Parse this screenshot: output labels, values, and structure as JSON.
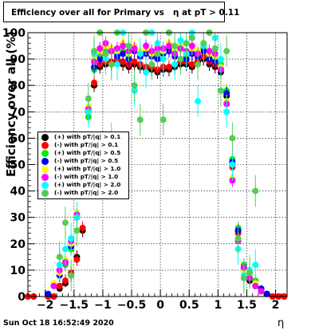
{
  "title": "Efficiency over all for Primary vs   η at pT > 0.11",
  "timestamp": "Sun Oct 18 16:52:49 2020",
  "chart_data": {
    "type": "scatter",
    "title": "Efficiency over all for Primary vs   η at pT > 0.11",
    "xlabel": "η",
    "ylabel": "Efficiency over all (%)",
    "xlim": [
      -2.3,
      2.2
    ],
    "ylim": [
      0,
      100
    ],
    "grid": true,
    "legend_position": "left-middle",
    "x_ticks": [
      "−2",
      "−1.5",
      "−1",
      "−0.5",
      "0",
      "0.5",
      "1",
      "1.5",
      "2"
    ],
    "x_tick_values": [
      -2,
      -1.5,
      -1,
      -0.5,
      0,
      0.5,
      1,
      1.5,
      2
    ],
    "y_ticks": [
      "0",
      "10",
      "20",
      "30",
      "40",
      "50",
      "60",
      "70",
      "80",
      "90",
      "100"
    ],
    "y_tick_values": [
      0,
      10,
      20,
      30,
      40,
      50,
      60,
      70,
      80,
      90,
      100
    ],
    "series": [
      {
        "name": "(+) with pT/|q| > 0.1",
        "color": "#000000",
        "x": [
          -2.3,
          -2.2,
          -1.95,
          -1.85,
          -1.75,
          -1.65,
          -1.55,
          -1.45,
          -1.35,
          -1.25,
          -1.15,
          -1.05,
          -0.95,
          -0.85,
          -0.75,
          -0.65,
          -0.55,
          -0.45,
          -0.35,
          -0.25,
          -0.15,
          -0.05,
          0.05,
          0.15,
          0.25,
          0.35,
          0.45,
          0.55,
          0.65,
          0.75,
          0.85,
          0.95,
          1.05,
          1.15,
          1.25,
          1.35,
          1.45,
          1.55,
          1.65,
          1.75,
          1.85,
          1.95,
          2.05,
          2.15
        ],
        "y": [
          0,
          0,
          0,
          0,
          3,
          5,
          8,
          15,
          25,
          55,
          80,
          87,
          88,
          88,
          89,
          88,
          87,
          88,
          87,
          86,
          86,
          85,
          86,
          86,
          87,
          88,
          88,
          87,
          89,
          90,
          88,
          87,
          85,
          76,
          50,
          25,
          10,
          6,
          4,
          2,
          1,
          0,
          0,
          0
        ]
      },
      {
        "name": "(-) with pT/|q| > 0.1",
        "color": "#ff0000",
        "x": [
          -2.3,
          -2.2,
          -1.95,
          -1.85,
          -1.75,
          -1.65,
          -1.55,
          -1.45,
          -1.35,
          -1.25,
          -1.15,
          -1.05,
          -0.95,
          -0.85,
          -0.75,
          -0.65,
          -0.55,
          -0.45,
          -0.35,
          -0.25,
          -0.15,
          -0.05,
          0.05,
          0.15,
          0.25,
          0.35,
          0.45,
          0.55,
          0.65,
          0.75,
          0.85,
          0.95,
          1.05,
          1.15,
          1.25,
          1.35,
          1.45,
          1.55,
          1.65,
          1.75,
          1.85,
          1.95,
          2.05,
          2.15
        ],
        "y": [
          0,
          0,
          0,
          0,
          4,
          6,
          9,
          14,
          26,
          56,
          81,
          88,
          89,
          89,
          90,
          89,
          88,
          89,
          88,
          87,
          87,
          86,
          87,
          87,
          88,
          89,
          89,
          88,
          90,
          91,
          89,
          88,
          86,
          77,
          49,
          24,
          11,
          7,
          4,
          2,
          1,
          0,
          0,
          0
        ]
      },
      {
        "name": "(+) with pT/|q| > 0.5",
        "color": "#00ee00",
        "x": [
          -1.95,
          -1.85,
          -1.75,
          -1.65,
          -1.55,
          -1.45,
          -1.35,
          -1.25,
          -1.15,
          -1.05,
          -0.95,
          -0.85,
          -0.75,
          -0.65,
          -0.55,
          -0.45,
          -0.35,
          -0.25,
          -0.15,
          -0.05,
          0.05,
          0.15,
          0.25,
          0.35,
          0.45,
          0.55,
          0.65,
          0.75,
          0.85,
          0.95,
          1.05,
          1.15,
          1.25,
          1.35,
          1.45,
          1.55,
          1.65,
          1.75,
          1.85
        ],
        "y": [
          1,
          5,
          8,
          12,
          18,
          30,
          48,
          68,
          86,
          91,
          93,
          94,
          92,
          93,
          91,
          94,
          92,
          93,
          92,
          91,
          93,
          94,
          92,
          95,
          91,
          93,
          92,
          94,
          91,
          90,
          88,
          78,
          52,
          26,
          12,
          9,
          6,
          3,
          1
        ]
      },
      {
        "name": "(-) with pT/|q| > 0.5",
        "color": "#0000ff",
        "x": [
          -1.95,
          -1.85,
          -1.75,
          -1.65,
          -1.55,
          -1.45,
          -1.35,
          -1.25,
          -1.15,
          -1.05,
          -0.95,
          -0.85,
          -0.75,
          -0.65,
          -0.55,
          -0.45,
          -0.35,
          -0.25,
          -0.15,
          -0.05,
          0.05,
          0.15,
          0.25,
          0.35,
          0.45,
          0.55,
          0.65,
          0.75,
          0.85,
          0.95,
          1.05,
          1.15,
          1.25,
          1.35,
          1.45,
          1.55,
          1.65,
          1.75,
          1.85
        ],
        "y": [
          1,
          4,
          8,
          13,
          19,
          30,
          47,
          70,
          87,
          90,
          92,
          93,
          91,
          92,
          90,
          93,
          91,
          92,
          91,
          90,
          92,
          93,
          91,
          94,
          90,
          92,
          91,
          93,
          90,
          89,
          87,
          77,
          51,
          25,
          11,
          8,
          5,
          3,
          1
        ]
      },
      {
        "name": "(+) with pT/|q| > 1.0",
        "color": "#ffff00",
        "x": [
          -1.85,
          -1.75,
          -1.65,
          -1.55,
          -1.45,
          -1.35,
          -1.25,
          -1.15,
          -1.05,
          -0.95,
          -0.85,
          -0.75,
          -0.65,
          -0.55,
          -0.45,
          -0.35,
          -0.25,
          -0.15,
          -0.05,
          0.05,
          0.15,
          0.25,
          0.35,
          0.45,
          0.55,
          0.65,
          0.75,
          0.85,
          0.95,
          1.05,
          1.15,
          1.25,
          1.35,
          1.45,
          1.55,
          1.65,
          1.75
        ],
        "y": [
          5,
          9,
          14,
          20,
          32,
          50,
          72,
          90,
          93,
          95,
          94,
          93,
          96,
          92,
          95,
          93,
          94,
          92,
          95,
          93,
          96,
          93,
          95,
          92,
          94,
          93,
          96,
          92,
          91,
          87,
          74,
          45,
          22,
          10,
          8,
          5,
          2
        ]
      },
      {
        "name": "(-) with pT/|q| > 1.0",
        "color": "#ff00ff",
        "x": [
          -1.85,
          -1.75,
          -1.65,
          -1.55,
          -1.45,
          -1.35,
          -1.25,
          -1.15,
          -1.05,
          -0.95,
          -0.85,
          -0.75,
          -0.65,
          -0.55,
          -0.45,
          -0.35,
          -0.25,
          -0.15,
          -0.05,
          0.05,
          0.15,
          0.25,
          0.35,
          0.45,
          0.55,
          0.65,
          0.75,
          0.85,
          0.95,
          1.05,
          1.15,
          1.25,
          1.35,
          1.45,
          1.55,
          1.65,
          1.75
        ],
        "y": [
          4,
          10,
          13,
          21,
          31,
          49,
          71,
          89,
          94,
          96,
          93,
          94,
          95,
          93,
          94,
          92,
          95,
          93,
          94,
          94,
          95,
          92,
          94,
          93,
          95,
          92,
          95,
          93,
          92,
          86,
          73,
          44,
          21,
          11,
          7,
          4,
          2
        ]
      },
      {
        "name": "(+) with pT/|q| > 2.0",
        "color": "#00ffff",
        "x": [
          -1.75,
          -1.65,
          -1.55,
          -1.45,
          -1.35,
          -1.25,
          -1.15,
          -1.05,
          -0.95,
          -0.85,
          -0.75,
          -0.65,
          -0.55,
          -0.45,
          -0.35,
          -0.25,
          -0.15,
          -0.05,
          0.05,
          0.15,
          0.25,
          0.35,
          0.45,
          0.55,
          0.65,
          0.75,
          0.85,
          0.95,
          1.05,
          1.15,
          1.25,
          1.35,
          1.45,
          1.55,
          1.65
        ],
        "y": [
          12,
          18,
          22,
          30,
          48,
          70,
          92,
          100,
          90,
          60,
          88,
          100,
          95,
          78,
          92,
          85,
          100,
          96,
          90,
          100,
          88,
          97,
          92,
          100,
          74,
          95,
          100,
          98,
          90,
          70,
          50,
          18,
          8,
          10,
          12
        ]
      },
      {
        "name": "(-) with pT/|q| > 2.0",
        "color": "#55cc55",
        "x": [
          -1.75,
          -1.65,
          -1.55,
          -1.45,
          -1.35,
          -1.25,
          -1.15,
          -1.05,
          -0.95,
          -0.85,
          -0.75,
          -0.65,
          -0.55,
          -0.45,
          -0.35,
          -0.25,
          -0.15,
          -0.05,
          0.05,
          0.15,
          0.25,
          0.35,
          0.45,
          0.55,
          0.65,
          0.75,
          0.85,
          0.95,
          1.05,
          1.15,
          1.25,
          1.35,
          1.45,
          1.55,
          1.65
        ],
        "y": [
          15,
          28,
          8,
          25,
          45,
          75,
          93,
          100,
          92,
          88,
          100,
          54,
          95,
          80,
          67,
          100,
          88,
          92,
          67,
          100,
          95,
          90,
          96,
          98,
          88,
          96,
          100,
          94,
          78,
          93,
          60,
          22,
          7,
          9,
          40
        ]
      }
    ]
  }
}
